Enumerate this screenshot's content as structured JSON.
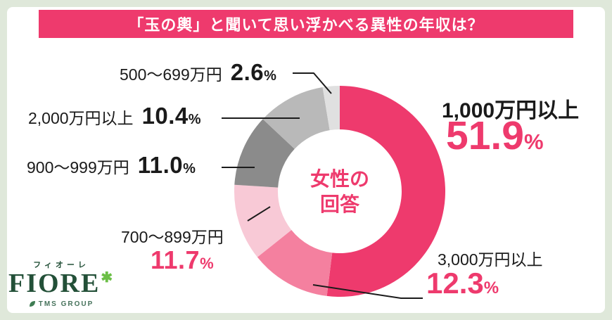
{
  "page": {
    "bg_color": "#dfe8da",
    "panel_color": "#ffffff"
  },
  "header": {
    "title": "「玉の輿」と聞いて思い浮かべる異性の年収は？",
    "bg_color": "#ee3a6d",
    "text_color": "#ffffff"
  },
  "chart_data": {
    "type": "pie",
    "donut": true,
    "title": "「玉の輿」と聞いて思い浮かべる異性の年収は？",
    "center_label_lines": [
      "女性の",
      "回答"
    ],
    "start_angle_deg": 0,
    "direction": "clockwise",
    "legend_position": "callout-labels",
    "segments": [
      {
        "label": "1,000万円以上",
        "value": 51.9,
        "pct": "51.9",
        "unit": "%",
        "color": "#ee3a6d"
      },
      {
        "label": "3,000万円以上",
        "value": 12.3,
        "pct": "12.3",
        "unit": "%",
        "color": "#f4809f"
      },
      {
        "label": "700～899万円",
        "value": 11.7,
        "pct": "11.7",
        "unit": "%",
        "color": "#f8c9d6"
      },
      {
        "label": "900～999万円",
        "value": 11.0,
        "pct": "11.0",
        "unit": "%",
        "color": "#8b8b8b"
      },
      {
        "label": "2,000万円以上",
        "value": 10.4,
        "pct": "10.4",
        "unit": "%",
        "color": "#b9b9b9"
      },
      {
        "label": "500～699万円",
        "value": 2.6,
        "pct": "2.6",
        "unit": "%",
        "color": "#e0e0e0"
      }
    ]
  },
  "logo": {
    "kana": "フィオーレ",
    "name": "FIORE",
    "asterisk": "✱",
    "group": "TMS GROUP"
  }
}
